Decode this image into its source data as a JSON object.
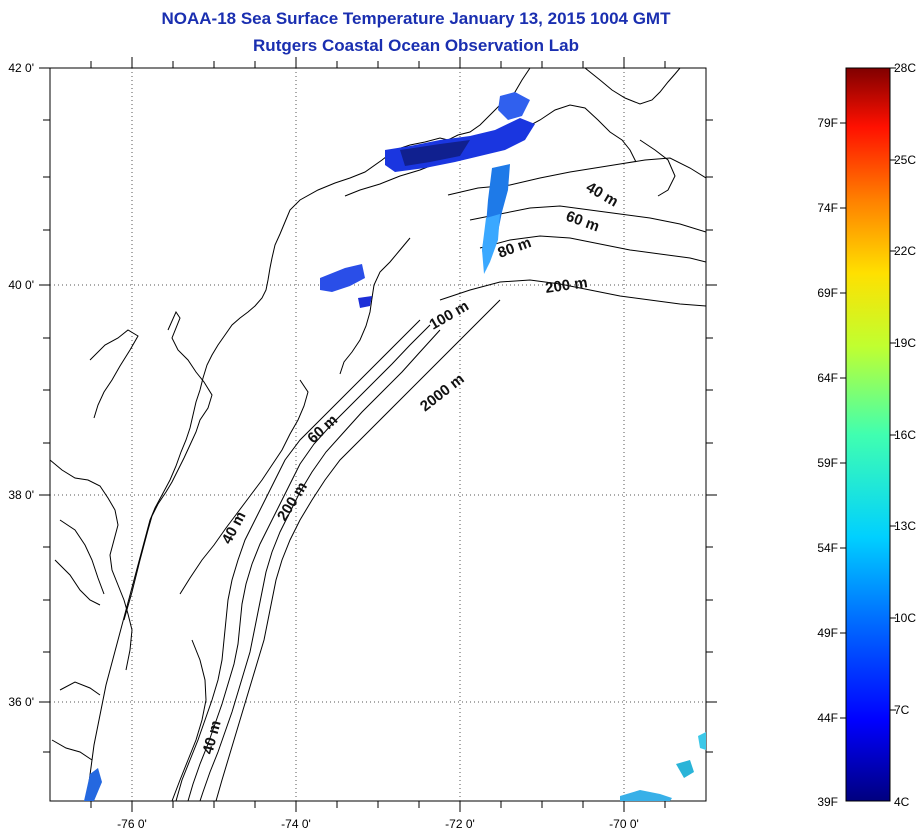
{
  "title": {
    "line1": "NOAA-18 Sea Surface Temperature January 13, 2015 1004 GMT",
    "line2": "Rutgers Coastal Ocean Observation Lab"
  },
  "map": {
    "lon_range": [
      -77,
      -69
    ],
    "lat_range": [
      35,
      42
    ],
    "lon_ticks": [
      "-76 0'",
      "-74 0'",
      "-72 0'",
      "-70 0'"
    ],
    "lat_ticks": [
      "42 0'",
      "40 0'",
      "38 0'",
      "36 0'"
    ],
    "contour_labels": [
      "40 m",
      "60 m",
      "80 m",
      "200 m",
      "100 m",
      "2000 m",
      "60 m",
      "200 m",
      "40 m",
      "40 m"
    ],
    "grid": "dotted"
  },
  "colorbar": {
    "fahrenheit": [
      "79F",
      "74F",
      "69F",
      "64F",
      "59F",
      "54F",
      "49F",
      "44F",
      "39F"
    ],
    "celsius": [
      "28C",
      "25C",
      "22C",
      "19C",
      "16C",
      "13C",
      "10C",
      "7C",
      "4C"
    ],
    "range_c": [
      4,
      28
    ]
  },
  "colors": {
    "title": "#1a2fb0",
    "coast": "#000000"
  }
}
